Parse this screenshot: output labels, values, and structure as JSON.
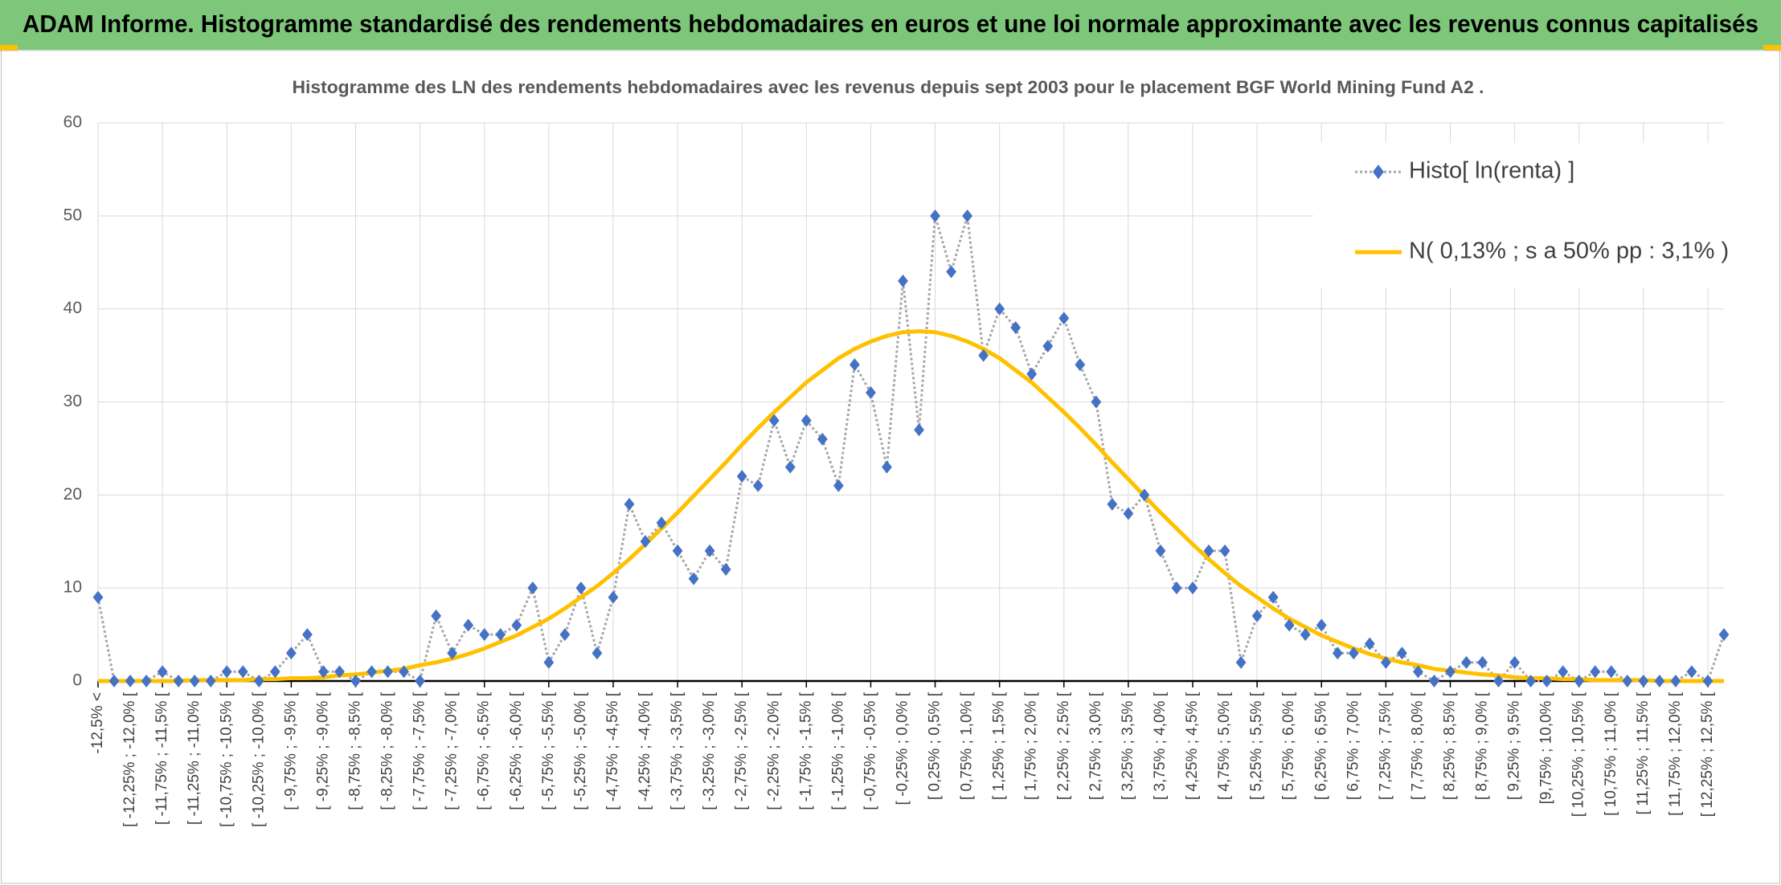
{
  "header": {
    "title": "ADAM Informe. Histogramme standardisé des rendements hebdomadaires en euros et une loi normale approximante avec les revenus connus capitalisés"
  },
  "chart_data": {
    "type": "line",
    "title": "Histogramme des LN des rendements hebdomadaires avec les revenus depuis sept 2003 pour le placement BGF World Mining Fund A2 .",
    "categories": [
      "-12,5% <",
      null,
      "[ -12,25% ; -12,0% [",
      null,
      "[ -11,75% ; -11,5% [",
      null,
      "[ -11,25% ; -11,0% [",
      null,
      "[ -10,75% ; -10,5% [",
      null,
      "[ -10,25% ; -10,0% [",
      null,
      "[ -9,75% ; -9,5% [",
      null,
      "[ -9,25% ; -9,0% [",
      null,
      "[ -8,75% ; -8,5% [",
      null,
      "[ -8,25% ; -8,0% [",
      null,
      "[ -7,75% ; -7,5% [",
      null,
      "[ -7,25% ; -7,0% [",
      null,
      "[ -6,75% ; -6,5% [",
      null,
      "[ -6,25% ; -6,0% [",
      null,
      "[ -5,75% ; -5,5% [",
      null,
      "[ -5,25% ; -5,0% [",
      null,
      "[ -4,75% ; -4,5% [",
      null,
      "[ -4,25% ; -4,0% [",
      null,
      "[ -3,75% ; -3,5% [",
      null,
      "[ -3,25% ; -3,0% [",
      null,
      "[ -2,75% ; -2,5% [",
      null,
      "[ -2,25% ; -2,0% [",
      null,
      "[ -1,75% ; -1,5% [",
      null,
      "[ -1,25% ; -1,0% [",
      null,
      "[ -0,75% ; -0,5% [",
      null,
      "[ -0,25% ; 0,0% [",
      null,
      "[ 0,25% ; 0,5% [",
      null,
      "[ 0,75% ; 1,0% [",
      null,
      "[ 1,25% ; 1,5% [",
      null,
      "[ 1,75% ; 2,0% [",
      null,
      "[ 2,25% ; 2,5% [",
      null,
      "[ 2,75% ; 3,0% [",
      null,
      "[ 3,25% ; 3,5% [",
      null,
      "[ 3,75% ; 4,0% [",
      null,
      "[ 4,25% ; 4,5% [",
      null,
      "[ 4,75% ; 5,0% [",
      null,
      "[ 5,25% ; 5,5% [",
      null,
      "[ 5,75% ; 6,0% [",
      null,
      "[ 6,25% ; 6,5% [",
      null,
      "[ 6,75% ; 7,0% [",
      null,
      "[ 7,25% ; 7,5% [",
      null,
      "[ 7,75% ; 8,0% [",
      null,
      "[ 8,25% ; 8,5% [",
      null,
      "[ 8,75% ; 9,0% [",
      null,
      "[ 9,25% ; 9,5% [",
      null,
      "[9,75% ; 10,0% [",
      null,
      "[ 10,25% ; 10,5% [",
      null,
      "[ 10,75% ; 11,0% [",
      null,
      "[ 11,25% ; 11,5% [",
      null,
      "[ 11,75% ; 12,0% [",
      null,
      "[ 12,25% ; 12,5% [",
      null
    ],
    "series": [
      {
        "name": "Histo[ ln(renta) ]",
        "color": "#4472c4",
        "marker": "diamond",
        "line_style": "dotted",
        "line_color": "#a6a6a6",
        "values": [
          9,
          0,
          0,
          0,
          1,
          0,
          0,
          0,
          1,
          1,
          0,
          1,
          3,
          5,
          1,
          1,
          0,
          1,
          1,
          1,
          0,
          7,
          3,
          6,
          5,
          5,
          6,
          10,
          2,
          5,
          10,
          3,
          9,
          19,
          15,
          17,
          14,
          11,
          14,
          12,
          22,
          21,
          28,
          23,
          28,
          26,
          21,
          34,
          31,
          23,
          43,
          27,
          50,
          44,
          50,
          35,
          40,
          38,
          33,
          36,
          39,
          34,
          30,
          19,
          18,
          20,
          14,
          10,
          10,
          14,
          14,
          2,
          7,
          9,
          6,
          5,
          6,
          3,
          3,
          4,
          2,
          3,
          1,
          0,
          1,
          2,
          2,
          0,
          2,
          0,
          0,
          1,
          0,
          1,
          1,
          0,
          0,
          0,
          0,
          1,
          0,
          5
        ]
      },
      {
        "name": "N( 0,13% ; s a 50% pp : 3,1% )",
        "color": "#ffc000",
        "marker": "none",
        "line_style": "solid",
        "values": [
          0,
          0,
          0,
          0,
          0,
          0,
          0.1,
          0.1,
          0.1,
          0.1,
          0.2,
          0.2,
          0.3,
          0.3,
          0.4,
          0.6,
          0.7,
          0.9,
          1.1,
          1.3,
          1.7,
          2.0,
          2.4,
          2.9,
          3.5,
          4.2,
          4.9,
          5.8,
          6.7,
          7.8,
          9.0,
          10.2,
          11.6,
          13.1,
          14.7,
          16.4,
          18.1,
          19.9,
          21.7,
          23.5,
          25.4,
          27.2,
          28.9,
          30.5,
          32.1,
          33.4,
          34.7,
          35.7,
          36.5,
          37.1,
          37.5,
          37.6,
          37.5,
          37.1,
          36.5,
          35.7,
          34.7,
          33.4,
          32.1,
          30.5,
          28.9,
          27.2,
          25.4,
          23.5,
          21.7,
          19.9,
          18.1,
          16.4,
          14.7,
          13.1,
          11.6,
          10.2,
          9.0,
          7.8,
          6.7,
          5.8,
          4.9,
          4.2,
          3.5,
          2.9,
          2.4,
          2.0,
          1.7,
          1.3,
          1.1,
          0.9,
          0.7,
          0.6,
          0.4,
          0.3,
          0.3,
          0.2,
          0.2,
          0.1,
          0.1,
          0.1,
          0.1,
          0,
          0,
          0,
          0,
          0
        ]
      }
    ],
    "ylim": [
      0,
      60
    ],
    "yticks": [
      0,
      10,
      20,
      30,
      40,
      50,
      60
    ],
    "grid": true,
    "legend": "upper right"
  }
}
